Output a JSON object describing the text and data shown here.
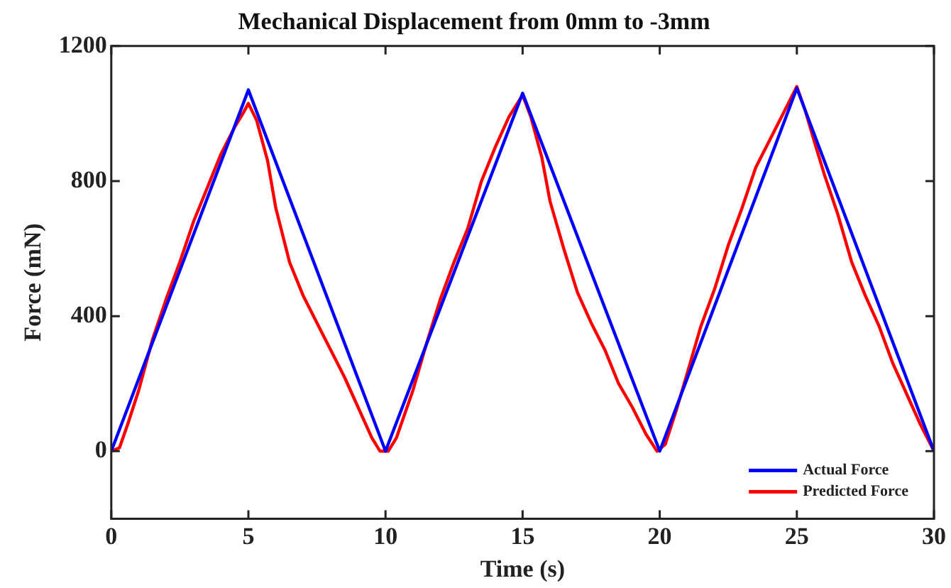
{
  "chart_data": {
    "type": "line",
    "title": "Mechanical Displacement from 0mm to -3mm",
    "xlabel": "Time (s)",
    "ylabel": "Force (mN)",
    "xlim": [
      0,
      30
    ],
    "xticks": [
      0,
      5,
      10,
      15,
      20,
      25,
      30
    ],
    "ylim": [
      -200,
      1200
    ],
    "yticks": [
      0,
      400,
      800,
      1200
    ],
    "grid": false,
    "legend": "bottom right",
    "marker": "none",
    "line_style": "solid",
    "series": [
      {
        "name": "Actual Force",
        "color": "#0000ff",
        "x": [
          0,
          5,
          10,
          15,
          20,
          25,
          30
        ],
        "values": [
          0,
          1070,
          0,
          1060,
          0,
          1075,
          0
        ]
      },
      {
        "name": "Predicted Force",
        "color": "#ff0000",
        "x": [
          0,
          0.3,
          0.6,
          1,
          1.5,
          2,
          2.5,
          3,
          3.5,
          4,
          4.5,
          4.8,
          5,
          5.3,
          5.7,
          6,
          6.5,
          7,
          7.5,
          8,
          8.5,
          9,
          9.5,
          9.8,
          10.1,
          10.4,
          11,
          11.5,
          12,
          12.5,
          13,
          13.5,
          14,
          14.5,
          15,
          15.3,
          15.7,
          16,
          16.5,
          17,
          17.5,
          18,
          18.5,
          19,
          19.5,
          19.9,
          20.2,
          20.6,
          21,
          21.5,
          22,
          22.5,
          23,
          23.5,
          24,
          24.5,
          25,
          25.3,
          25.7,
          26,
          26.5,
          27,
          27.5,
          28,
          28.5,
          29,
          29.5,
          30
        ],
        "values": [
          0,
          10,
          80,
          180,
          330,
          450,
          560,
          680,
          780,
          880,
          960,
          1000,
          1030,
          980,
          860,
          720,
          560,
          460,
          380,
          300,
          220,
          130,
          40,
          0,
          0,
          40,
          180,
          320,
          450,
          560,
          660,
          800,
          900,
          990,
          1055,
          990,
          870,
          740,
          600,
          470,
          380,
          300,
          200,
          130,
          50,
          0,
          20,
          120,
          230,
          370,
          480,
          610,
          720,
          840,
          920,
          1000,
          1080,
          1010,
          900,
          820,
          700,
          560,
          460,
          370,
          260,
          170,
          80,
          0
        ]
      }
    ]
  }
}
